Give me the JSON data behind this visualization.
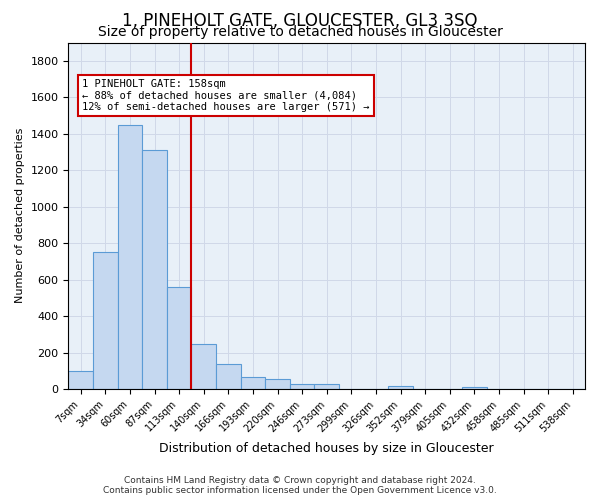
{
  "title": "1, PINEHOLT GATE, GLOUCESTER, GL3 3SQ",
  "subtitle": "Size of property relative to detached houses in Gloucester",
  "xlabel": "Distribution of detached houses by size in Gloucester",
  "ylabel": "Number of detached properties",
  "bar_color": "#c5d8f0",
  "bar_edge_color": "#5b9bd5",
  "vline_color": "#cc0000",
  "vline_x": 4.5,
  "categories": [
    "7sqm",
    "34sqm",
    "60sqm",
    "87sqm",
    "113sqm",
    "140sqm",
    "166sqm",
    "193sqm",
    "220sqm",
    "246sqm",
    "273sqm",
    "299sqm",
    "326sqm",
    "352sqm",
    "379sqm",
    "405sqm",
    "432sqm",
    "458sqm",
    "485sqm",
    "511sqm",
    "538sqm"
  ],
  "values": [
    100,
    750,
    1450,
    1310,
    560,
    245,
    135,
    65,
    55,
    25,
    30,
    0,
    0,
    15,
    0,
    0,
    10,
    0,
    0,
    0,
    0
  ],
  "ylim": [
    0,
    1900
  ],
  "yticks": [
    0,
    200,
    400,
    600,
    800,
    1000,
    1200,
    1400,
    1600,
    1800
  ],
  "annotation_text": "1 PINEHOLT GATE: 158sqm\n← 88% of detached houses are smaller (4,084)\n12% of semi-detached houses are larger (571) →",
  "footnote": "Contains HM Land Registry data © Crown copyright and database right 2024.\nContains public sector information licensed under the Open Government Licence v3.0.",
  "background_color": "#ffffff",
  "grid_color": "#d0d8e8",
  "title_fontsize": 12,
  "subtitle_fontsize": 10,
  "xlabel_fontsize": 9,
  "ylabel_fontsize": 8,
  "footnote_fontsize": 6.5
}
